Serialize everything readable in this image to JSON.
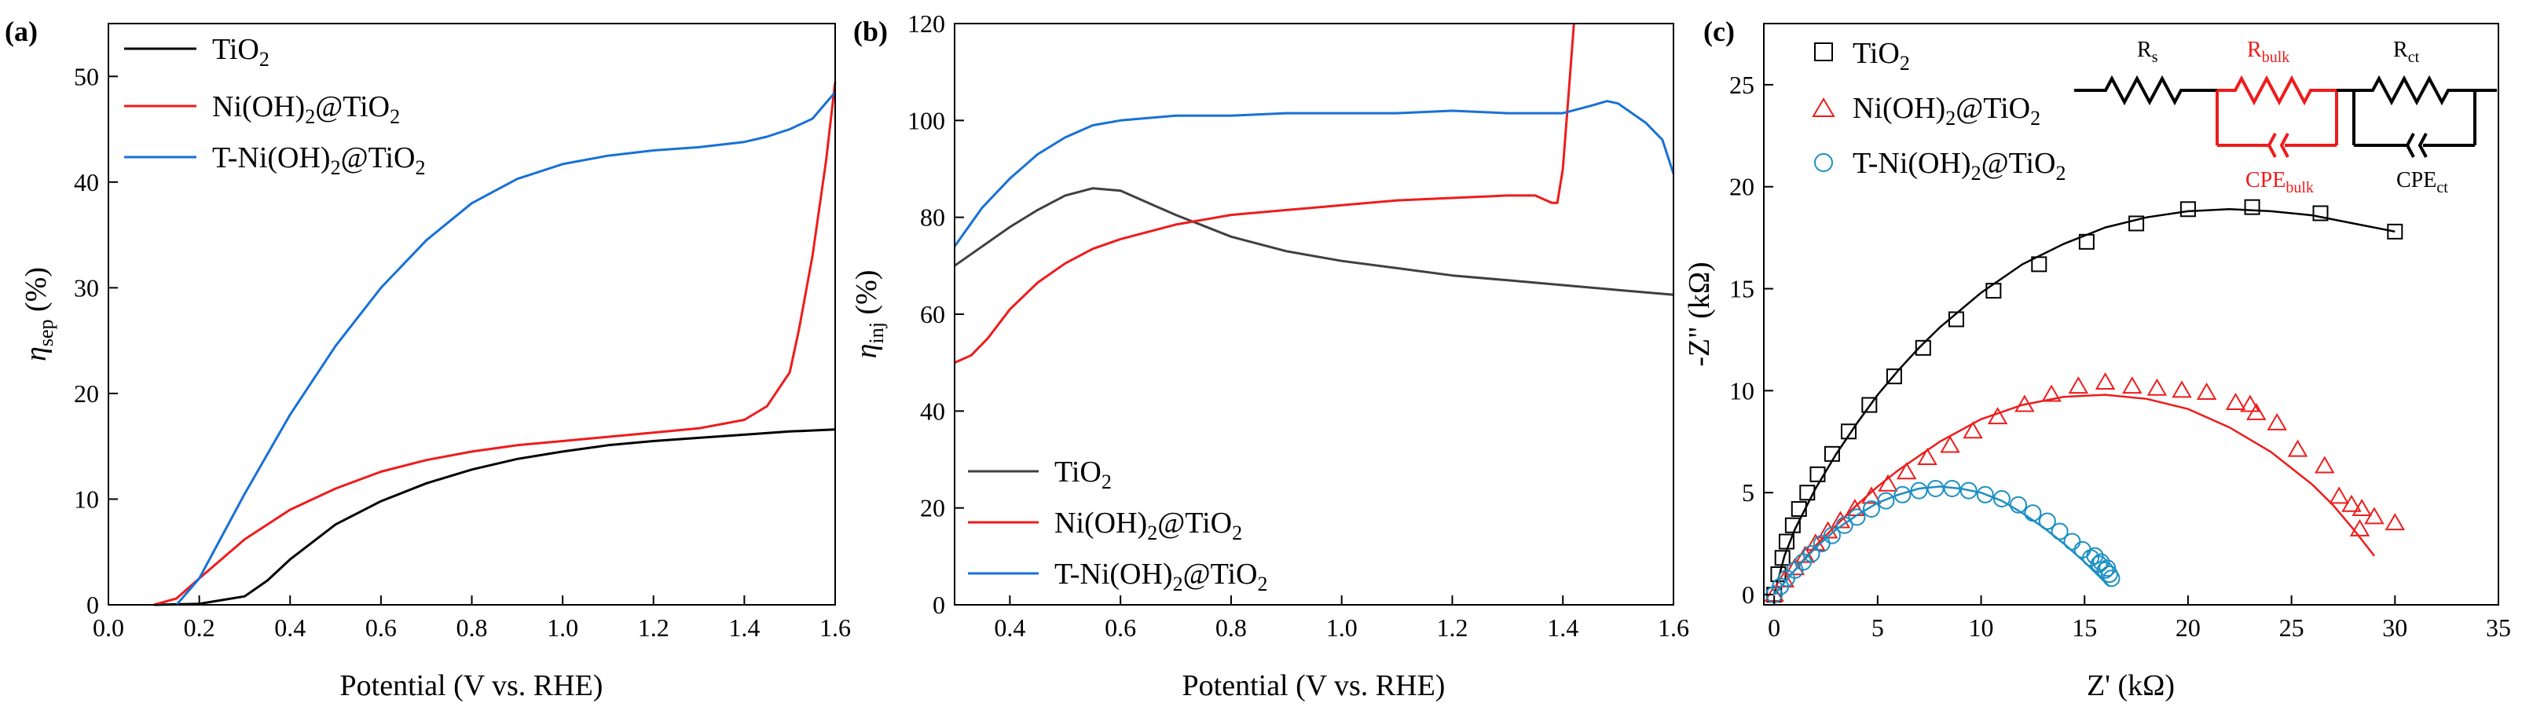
{
  "chart_data": [
    {
      "panel": "(a)",
      "type": "line",
      "xlabel": "Potential (V vs. RHE)",
      "ylabel": "ηsep (%)",
      "ylabel_main": "η",
      "ylabel_sub": "sep",
      "ylabel_tail": " (%)",
      "xlim": [
        0.0,
        1.6
      ],
      "ylim": [
        0,
        55
      ],
      "xticks": [
        0.0,
        0.2,
        0.4,
        0.6,
        0.8,
        1.0,
        1.2,
        1.4,
        1.6
      ],
      "yticks": [
        0,
        10,
        20,
        30,
        40,
        50
      ],
      "legend_position": "top-left",
      "series": [
        {
          "name": "TiO2",
          "label": "TiO",
          "sub": "2",
          "color": "#000000",
          "x": [
            0.1,
            0.2,
            0.3,
            0.35,
            0.4,
            0.5,
            0.6,
            0.7,
            0.8,
            0.9,
            1.0,
            1.1,
            1.2,
            1.3,
            1.4,
            1.5,
            1.6
          ],
          "y": [
            0,
            0.1,
            0.8,
            2.3,
            4.3,
            7.6,
            9.8,
            11.5,
            12.8,
            13.8,
            14.5,
            15.1,
            15.5,
            15.8,
            16.1,
            16.4,
            16.6
          ]
        },
        {
          "name": "Ni(OH)2@TiO2",
          "label": "Ni(OH)",
          "sub": "2",
          "tail": "@TiO",
          "sub2": "2",
          "color": "#ee1c1c",
          "x": [
            0.1,
            0.15,
            0.2,
            0.3,
            0.4,
            0.5,
            0.6,
            0.7,
            0.8,
            0.9,
            1.0,
            1.1,
            1.2,
            1.3,
            1.4,
            1.45,
            1.5,
            1.52,
            1.55,
            1.58,
            1.6
          ],
          "y": [
            0,
            0.6,
            2.5,
            6.2,
            9.0,
            11.0,
            12.6,
            13.7,
            14.5,
            15.1,
            15.5,
            15.9,
            16.3,
            16.7,
            17.5,
            18.8,
            22,
            26,
            33,
            42,
            49.5
          ]
        },
        {
          "name": "T-Ni(OH)2@TiO2",
          "label": "T-Ni(OH)",
          "sub": "2",
          "tail": "@TiO",
          "sub2": "2",
          "color": "#1871d6",
          "x": [
            0.15,
            0.2,
            0.25,
            0.3,
            0.4,
            0.5,
            0.6,
            0.7,
            0.8,
            0.9,
            1.0,
            1.1,
            1.2,
            1.3,
            1.4,
            1.45,
            1.5,
            1.55,
            1.58,
            1.6
          ],
          "y": [
            0,
            2.5,
            6.5,
            10.5,
            18.0,
            24.5,
            30.0,
            34.5,
            38.0,
            40.3,
            41.7,
            42.5,
            43.0,
            43.3,
            43.8,
            44.3,
            45.0,
            46.0,
            47.5,
            48.5
          ]
        }
      ]
    },
    {
      "panel": "(b)",
      "type": "line",
      "xlabel": "Potential (V vs. RHE)",
      "ylabel": "ηinj (%)",
      "ylabel_main": "η",
      "ylabel_sub": "inj",
      "ylabel_tail": " (%)",
      "xlim": [
        0.3,
        1.6
      ],
      "ylim": [
        0,
        120
      ],
      "xticks": [
        0.4,
        0.6,
        0.8,
        1.0,
        1.2,
        1.4,
        1.6
      ],
      "yticks": [
        0,
        20,
        40,
        60,
        80,
        100,
        120
      ],
      "legend_position": "bottom-left",
      "series": [
        {
          "name": "TiO2",
          "label": "TiO",
          "sub": "2",
          "color": "#404040",
          "x": [
            0.3,
            0.35,
            0.4,
            0.45,
            0.5,
            0.55,
            0.6,
            0.65,
            0.7,
            0.8,
            0.9,
            1.0,
            1.1,
            1.2,
            1.3,
            1.4,
            1.5,
            1.6
          ],
          "y": [
            70,
            74,
            78,
            81.5,
            84.5,
            86,
            85.5,
            83,
            80.5,
            76,
            73,
            71,
            69.5,
            68,
            67,
            66,
            65,
            64
          ]
        },
        {
          "name": "Ni(OH)2@TiO2",
          "label": "Ni(OH)",
          "sub": "2",
          "tail": "@TiO",
          "sub2": "2",
          "color": "#ee1c1c",
          "x": [
            0.3,
            0.33,
            0.36,
            0.4,
            0.45,
            0.5,
            0.55,
            0.6,
            0.7,
            0.8,
            0.9,
            1.0,
            1.1,
            1.2,
            1.3,
            1.35,
            1.38,
            1.39,
            1.4,
            1.41,
            1.42
          ],
          "y": [
            50,
            51.5,
            55,
            61,
            66.5,
            70.5,
            73.5,
            75.5,
            78.5,
            80.5,
            81.5,
            82.5,
            83.5,
            84,
            84.5,
            84.5,
            83,
            83,
            90,
            105,
            120
          ]
        },
        {
          "name": "T-Ni(OH)2@TiO2",
          "label": "T-Ni(OH)",
          "sub": "2",
          "tail": "@TiO",
          "sub2": "2",
          "color": "#1871d6",
          "x": [
            0.3,
            0.35,
            0.4,
            0.45,
            0.5,
            0.55,
            0.6,
            0.7,
            0.8,
            0.9,
            1.0,
            1.1,
            1.2,
            1.3,
            1.4,
            1.45,
            1.48,
            1.5,
            1.55,
            1.58,
            1.6
          ],
          "y": [
            74,
            82,
            88,
            93,
            96.5,
            99,
            100,
            101,
            101,
            101.5,
            101.5,
            101.5,
            102,
            101.5,
            101.5,
            103,
            104,
            103.5,
            99.5,
            96,
            89
          ]
        }
      ]
    },
    {
      "panel": "(c)",
      "type": "scatter",
      "xlabel": "Z' (kΩ)",
      "ylabel": "-Z\" (kΩ)",
      "xlim": [
        -0.5,
        35
      ],
      "ylim": [
        -0.5,
        28
      ],
      "xticks": [
        0,
        5,
        10,
        15,
        20,
        25,
        30,
        35
      ],
      "yticks": [
        0,
        5,
        10,
        15,
        20,
        25
      ],
      "legend_position": "top-left",
      "series": [
        {
          "name": "TiO2",
          "label": "TiO",
          "sub": "2",
          "color": "#000000",
          "marker": "square",
          "x": [
            0,
            0.2,
            0.4,
            0.6,
            0.9,
            1.2,
            1.6,
            2.1,
            2.8,
            3.6,
            4.6,
            5.8,
            7.2,
            8.8,
            10.6,
            12.8,
            15.1,
            17.5,
            20.0,
            23.1,
            26.4,
            30.0
          ],
          "y": [
            0,
            1.0,
            1.8,
            2.6,
            3.4,
            4.2,
            5.0,
            5.9,
            6.9,
            8.0,
            9.3,
            10.7,
            12.1,
            13.5,
            14.9,
            16.2,
            17.3,
            18.2,
            18.9,
            19.0,
            18.7,
            17.8
          ],
          "fit_x": [
            0,
            0.5,
            1,
            2,
            3,
            4,
            5,
            6,
            7,
            8,
            10,
            12,
            14,
            16,
            18,
            20,
            22,
            24,
            26,
            28,
            30
          ],
          "fit_y": [
            0,
            1.9,
            3.2,
            5.2,
            6.9,
            8.4,
            9.8,
            11.0,
            12.1,
            13.1,
            14.8,
            16.2,
            17.2,
            18.0,
            18.5,
            18.8,
            18.9,
            18.8,
            18.6,
            18.2,
            17.8
          ]
        },
        {
          "name": "Ni(OH)2@TiO2",
          "label": "Ni(OH)",
          "sub": "2",
          "tail": "@TiO",
          "sub2": "2",
          "color": "#ee1c1c",
          "marker": "triangle",
          "x": [
            0,
            0.5,
            1.0,
            1.5,
            2.0,
            2.6,
            3.2,
            3.9,
            4.7,
            5.5,
            6.4,
            7.4,
            8.5,
            9.6,
            10.8,
            12.1,
            13.4,
            14.7,
            16.0,
            17.3,
            18.5,
            19.7,
            20.9,
            22.3,
            23.3,
            23.0,
            24.3,
            25.3,
            26.6,
            27.3,
            27.9,
            28.4,
            29.0,
            30.0,
            28.3
          ],
          "y": [
            0,
            0.7,
            1.3,
            1.9,
            2.5,
            3.1,
            3.6,
            4.2,
            4.8,
            5.4,
            6.0,
            6.7,
            7.3,
            8.0,
            8.7,
            9.3,
            9.8,
            10.2,
            10.4,
            10.2,
            10.1,
            10.0,
            9.9,
            9.4,
            8.9,
            9.3,
            8.4,
            7.1,
            6.3,
            4.8,
            4.4,
            4.2,
            3.8,
            3.5,
            3.2
          ],
          "fit_x": [
            0,
            1,
            2,
            3,
            4,
            5,
            6,
            8,
            10,
            12,
            14,
            16,
            18,
            20,
            22,
            24,
            26,
            27,
            28,
            29
          ],
          "fit_y": [
            0,
            1.2,
            2.4,
            3.4,
            4.4,
            5.3,
            6.1,
            7.5,
            8.6,
            9.3,
            9.7,
            9.8,
            9.6,
            9.1,
            8.2,
            7.0,
            5.4,
            4.4,
            3.2,
            1.9
          ]
        },
        {
          "name": "T-Ni(OH)2@TiO2",
          "label": "T-Ni(OH)",
          "sub": "2",
          "tail": "@TiO",
          "sub2": "2",
          "color": "#1b8fc2",
          "marker": "circle",
          "x": [
            0,
            0.3,
            0.6,
            1.0,
            1.4,
            1.8,
            2.3,
            2.8,
            3.4,
            4.0,
            4.7,
            5.4,
            6.2,
            7.0,
            7.8,
            8.6,
            9.4,
            10.2,
            11.0,
            11.8,
            12.5,
            13.2,
            13.8,
            14.4,
            14.9,
            15.3,
            15.7,
            16.0,
            16.2,
            16.3,
            16.1,
            15.8,
            15.5
          ],
          "y": [
            0,
            0.4,
            0.8,
            1.2,
            1.6,
            2.0,
            2.5,
            2.9,
            3.4,
            3.8,
            4.2,
            4.6,
            4.9,
            5.1,
            5.2,
            5.2,
            5.1,
            4.9,
            4.7,
            4.4,
            4.0,
            3.6,
            3.1,
            2.6,
            2.2,
            1.8,
            1.5,
            1.2,
            1.0,
            0.8,
            1.3,
            1.6,
            1.9
          ],
          "fit_x": [
            0,
            0.5,
            1,
            2,
            3,
            4,
            5,
            6,
            7,
            8,
            9,
            10,
            11,
            12,
            13,
            14,
            15,
            15.8,
            16.2
          ],
          "fit_y": [
            0,
            0.6,
            1.2,
            2.3,
            3.2,
            3.9,
            4.5,
            4.9,
            5.2,
            5.3,
            5.2,
            5.0,
            4.6,
            4.0,
            3.3,
            2.5,
            1.6,
            0.8,
            0.4
          ]
        }
      ],
      "inset": {
        "Rs_main": "R",
        "Rs_sub": "s",
        "Rbulk_main": "R",
        "Rbulk_sub": "bulk",
        "Rct_main": "R",
        "Rct_sub": "ct",
        "CPEbulk_main": "CPE",
        "CPEbulk_sub": "bulk",
        "CPEct_main": "CPE",
        "CPEct_sub": "ct",
        "color_bulk": "#ee1c1c",
        "color_other": "#000000"
      }
    }
  ]
}
